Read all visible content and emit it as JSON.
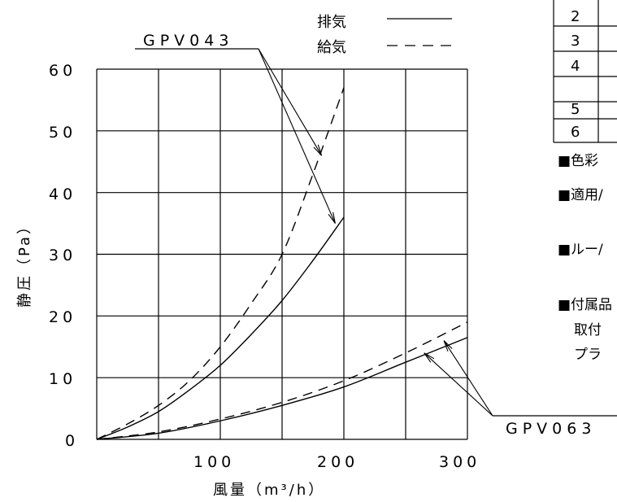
{
  "chart_data": {
    "type": "line",
    "xlabel": "風量（m³/h）",
    "ylabel": "静圧（Pa）",
    "xlim": [
      0,
      300
    ],
    "ylim": [
      0,
      60
    ],
    "x_ticks": [
      "100",
      "200",
      "300"
    ],
    "y_ticks": [
      "0",
      "10",
      "20",
      "30",
      "40",
      "50",
      "60"
    ],
    "grid": true,
    "legend": [
      {
        "label": "排気",
        "style": "solid"
      },
      {
        "label": "給気",
        "style": "dashed"
      }
    ],
    "series": [
      {
        "model": "GPV043",
        "name": "排気",
        "style": "solid",
        "x": [
          0,
          25,
          50,
          75,
          100,
          125,
          150,
          175,
          200
        ],
        "y": [
          0,
          2,
          4.5,
          8,
          12,
          17,
          22.5,
          29,
          36
        ]
      },
      {
        "model": "GPV043",
        "name": "給気",
        "style": "dashed",
        "x": [
          0,
          25,
          50,
          75,
          100,
          125,
          150,
          175,
          200
        ],
        "y": [
          0,
          2.5,
          5.5,
          9.5,
          15,
          22,
          30,
          43,
          57
        ]
      },
      {
        "model": "GPV063",
        "name": "排気",
        "style": "solid",
        "x": [
          0,
          50,
          100,
          150,
          200,
          250,
          300
        ],
        "y": [
          0,
          1,
          3,
          5.5,
          8.5,
          12.5,
          16.5
        ]
      },
      {
        "model": "GPV063",
        "name": "給気",
        "style": "dashed",
        "x": [
          0,
          50,
          100,
          150,
          200,
          250,
          300
        ],
        "y": [
          0,
          1.2,
          3.3,
          6,
          9.5,
          14,
          19
        ]
      }
    ],
    "annotations": [
      {
        "text": "GPV043",
        "targets": [
          {
            "x": 182,
            "y": 46
          },
          {
            "x": 193,
            "y": 35
          }
        ]
      },
      {
        "text": "GPV063",
        "targets": [
          {
            "x": 265,
            "y": 14
          },
          {
            "x": 281,
            "y": 16
          }
        ]
      }
    ]
  },
  "side_table": {
    "rows": [
      "2",
      "3",
      "4",
      "5",
      "6"
    ]
  },
  "side_notes": {
    "color": "■色彩",
    "applicable": "■適用/",
    "louver": "■ルー/",
    "accessories": "■付属品",
    "accessories_line2": "取付",
    "accessories_line3": "プラ"
  }
}
